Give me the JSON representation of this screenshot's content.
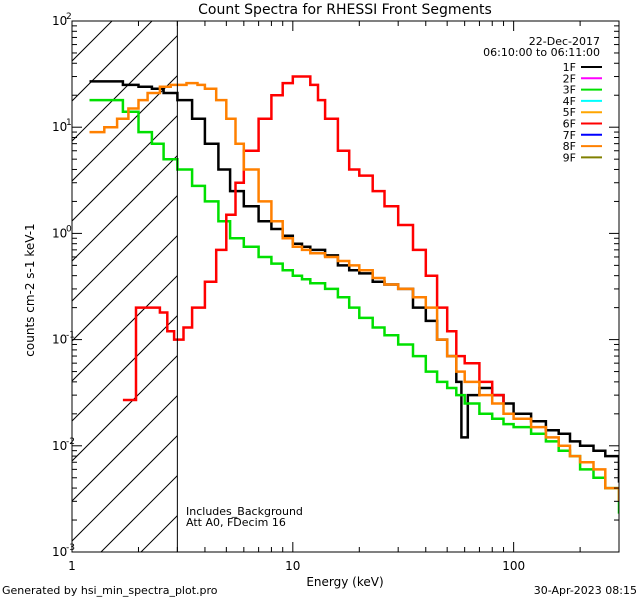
{
  "chart_data": {
    "type": "line",
    "title": "Count Spectra for RHESSI Front Segments",
    "xlabel": "Energy (keV)",
    "ylabel": "counts cm-2 s-1 keV-1",
    "x_scale": "log",
    "y_scale": "log",
    "xlim": [
      1,
      300
    ],
    "ylim": [
      0.001,
      100
    ],
    "x_ticks": [
      {
        "v": 1,
        "label": "1"
      },
      {
        "v": 10,
        "label": "10"
      },
      {
        "v": 100,
        "label": "100"
      }
    ],
    "y_ticks": [
      {
        "v": 0.001,
        "label": "10",
        "exp": "-3"
      },
      {
        "v": 0.01,
        "label": "10",
        "exp": "-2"
      },
      {
        "v": 0.1,
        "label": "10",
        "exp": "-1"
      },
      {
        "v": 1,
        "label": "10",
        "exp": "0"
      },
      {
        "v": 10,
        "label": "10",
        "exp": "1"
      },
      {
        "v": 100,
        "label": "10",
        "exp": "2"
      }
    ],
    "legend_position": "top-right",
    "legend_date": "22-Dec-2017",
    "legend_time": "06:10:00 to 06:11:00",
    "legend": [
      {
        "name": "1F",
        "color": "#000000"
      },
      {
        "name": "2F",
        "color": "#ff00ff"
      },
      {
        "name": "3F",
        "color": "#00e000"
      },
      {
        "name": "4F",
        "color": "#00ffff"
      },
      {
        "name": "5F",
        "color": "#ffa500"
      },
      {
        "name": "6F",
        "color": "#ff0000"
      },
      {
        "name": "7F",
        "color": "#0000ff"
      },
      {
        "name": "8F",
        "color": "#ff8000"
      },
      {
        "name": "9F",
        "color": "#808000"
      }
    ],
    "hatch_region": {
      "x_from": 1,
      "x_to": 3
    },
    "annotations": [
      "Includes_Background",
      "Att A0, FDecim 16"
    ],
    "series": [
      {
        "name": "1F",
        "color": "#000000",
        "x": [
          1.2,
          1.5,
          1.7,
          2.0,
          2.3,
          2.6,
          3.0,
          3.5,
          4.0,
          4.6,
          5.2,
          6.0,
          7.0,
          8.0,
          9.0,
          10,
          11,
          12,
          14,
          16,
          18,
          20,
          23,
          26,
          30,
          35,
          40,
          45,
          50,
          55,
          58,
          62,
          70,
          80,
          90,
          100,
          120,
          140,
          160,
          180,
          200,
          230,
          260,
          300
        ],
        "y": [
          27,
          27,
          25,
          24,
          23,
          21,
          18,
          12,
          7,
          4,
          2.5,
          1.8,
          1.3,
          1.1,
          0.95,
          0.8,
          0.75,
          0.7,
          0.62,
          0.5,
          0.45,
          0.42,
          0.35,
          0.33,
          0.3,
          0.2,
          0.15,
          0.1,
          0.07,
          0.04,
          0.012,
          0.03,
          0.035,
          0.03,
          0.025,
          0.02,
          0.017,
          0.014,
          0.013,
          0.011,
          0.01,
          0.009,
          0.008,
          0.0045
        ]
      },
      {
        "name": "3F",
        "color": "#00e000",
        "x": [
          1.2,
          1.5,
          1.7,
          2.0,
          2.3,
          2.6,
          3.0,
          3.5,
          4.0,
          4.6,
          5.2,
          6.0,
          7.0,
          8.0,
          9.0,
          10,
          11,
          12,
          14,
          16,
          18,
          20,
          23,
          26,
          30,
          35,
          40,
          45,
          50,
          55,
          60,
          70,
          80,
          90,
          100,
          120,
          140,
          160,
          180,
          200,
          230,
          260,
          300
        ],
        "y": [
          18,
          18,
          14,
          9,
          7,
          5,
          4,
          2.8,
          2.0,
          1.3,
          0.9,
          0.75,
          0.6,
          0.52,
          0.45,
          0.4,
          0.37,
          0.34,
          0.3,
          0.25,
          0.2,
          0.16,
          0.13,
          0.11,
          0.09,
          0.07,
          0.05,
          0.04,
          0.035,
          0.03,
          0.025,
          0.02,
          0.018,
          0.016,
          0.015,
          0.013,
          0.011,
          0.009,
          0.008,
          0.006,
          0.005,
          0.004,
          0.0023
        ]
      },
      {
        "name": "6F",
        "color": "#ff0000",
        "x": [
          1.7,
          1.9,
          1.95,
          2.2,
          2.5,
          2.7,
          2.9,
          3.2,
          3.5,
          4.0,
          4.5,
          5.0,
          5.5,
          6.0,
          7.0,
          8.0,
          9.0,
          10,
          11,
          12,
          13,
          14,
          16,
          18,
          20,
          23,
          26,
          30,
          35,
          40,
          45,
          50,
          55,
          60,
          70,
          80,
          90
        ],
        "y": [
          0.027,
          0.027,
          0.2,
          0.2,
          0.18,
          0.12,
          0.1,
          0.13,
          0.2,
          0.35,
          0.7,
          1.5,
          3,
          6,
          12,
          20,
          26,
          30,
          30,
          25,
          18,
          12,
          6,
          4,
          3.5,
          2.5,
          1.8,
          1.2,
          0.7,
          0.4,
          0.2,
          0.12,
          0.07,
          0.06,
          0.04,
          0.03,
          0.025
        ]
      },
      {
        "name": "8F",
        "color": "#ff8000",
        "x": [
          1.2,
          1.4,
          1.6,
          1.8,
          2.0,
          2.2,
          2.5,
          2.8,
          3.0,
          3.3,
          3.7,
          4.0,
          4.5,
          5.0,
          5.5,
          6.0,
          7.0,
          8.0,
          9.0,
          10,
          11,
          12,
          14,
          16,
          18,
          20,
          23,
          26,
          30,
          35,
          40,
          45,
          50,
          55,
          60,
          70,
          80,
          90,
          100,
          120,
          140,
          160,
          180,
          200,
          230,
          260,
          300
        ],
        "y": [
          9,
          10,
          12,
          15,
          18,
          21,
          24,
          25,
          25,
          26,
          25,
          23,
          18,
          12,
          7,
          4,
          2,
          1.3,
          0.9,
          0.75,
          0.7,
          0.65,
          0.6,
          0.55,
          0.5,
          0.45,
          0.38,
          0.33,
          0.3,
          0.25,
          0.2,
          0.1,
          0.07,
          0.05,
          0.04,
          0.03,
          0.025,
          0.02,
          0.018,
          0.015,
          0.012,
          0.01,
          0.008,
          0.007,
          0.006,
          0.004,
          0.003
        ]
      }
    ]
  },
  "footer": {
    "generated_by": "Generated by hsi_min_spectra_plot.pro",
    "timestamp": "30-Apr-2023 08:15"
  }
}
